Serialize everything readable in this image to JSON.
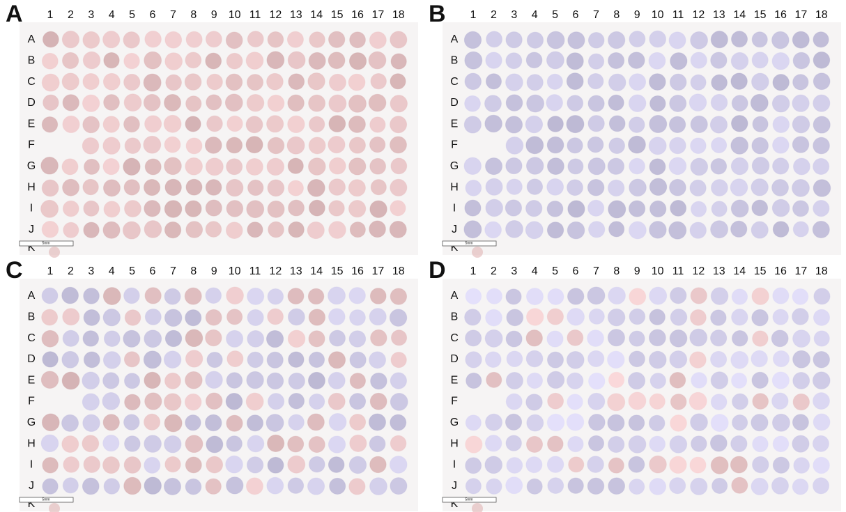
{
  "panels": [
    {
      "label": "A",
      "columns": [
        "1",
        "2",
        "3",
        "4",
        "5",
        "6",
        "7",
        "8",
        "9",
        "10",
        "11",
        "12",
        "13",
        "14",
        "15",
        "16",
        "17",
        "18"
      ],
      "rows": [
        "A",
        "B",
        "C",
        "D",
        "E",
        "F",
        "G",
        "H",
        "I",
        "J",
        "K"
      ],
      "scale_bar": "5mm"
    },
    {
      "label": "B",
      "columns": [
        "1",
        "2",
        "3",
        "4",
        "5",
        "6",
        "7",
        "8",
        "9",
        "10",
        "11",
        "12",
        "13",
        "14",
        "15",
        "16",
        "17",
        "18"
      ],
      "rows": [
        "A",
        "B",
        "C",
        "D",
        "E",
        "F",
        "G",
        "H",
        "I",
        "J",
        "K"
      ],
      "scale_bar": "5mm"
    },
    {
      "label": "C",
      "columns": [
        "1",
        "2",
        "3",
        "4",
        "5",
        "6",
        "7",
        "8",
        "9",
        "10",
        "11",
        "12",
        "13",
        "14",
        "15",
        "16",
        "17",
        "18"
      ],
      "rows": [
        "A",
        "B",
        "C",
        "D",
        "E",
        "F",
        "G",
        "H",
        "I",
        "J",
        "K"
      ],
      "scale_bar": "5mm"
    },
    {
      "label": "D",
      "columns": [
        "1",
        "2",
        "3",
        "4",
        "5",
        "6",
        "7",
        "8",
        "9",
        "10",
        "11",
        "12",
        "13",
        "14",
        "15",
        "16",
        "17",
        "18"
      ],
      "rows": [
        "A",
        "B",
        "C",
        "D",
        "E",
        "F",
        "G",
        "H",
        "I",
        "J",
        "K"
      ],
      "scale_bar": "5mm"
    }
  ]
}
